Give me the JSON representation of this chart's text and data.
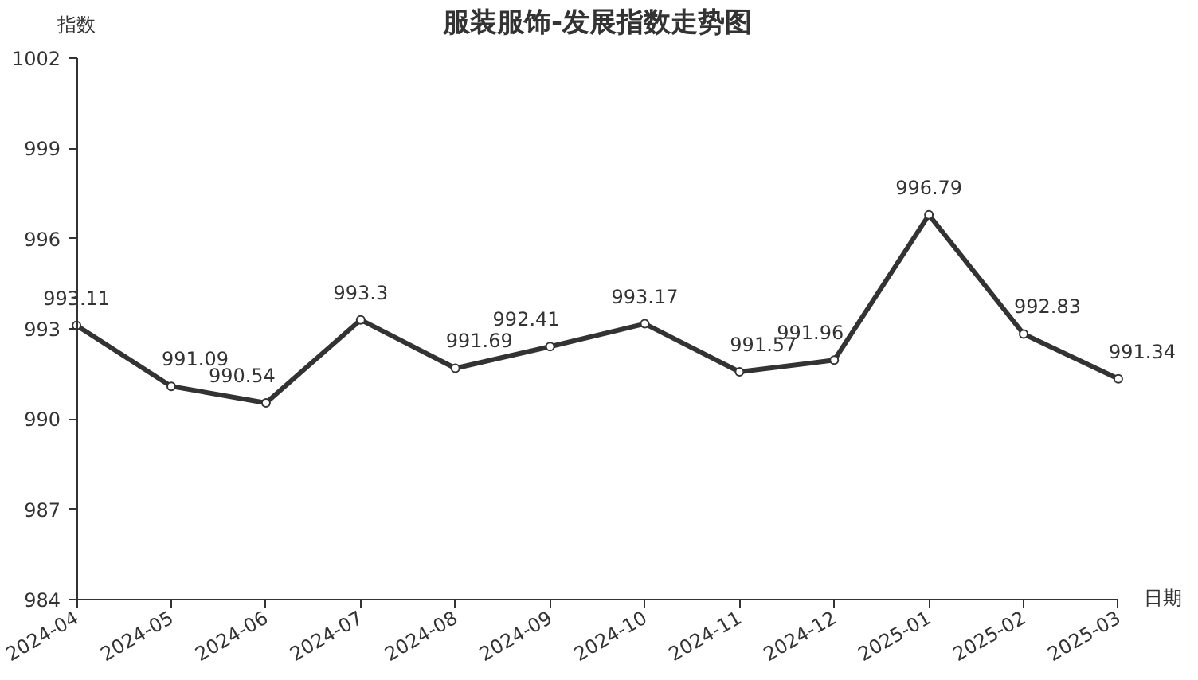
{
  "chart_data": {
    "type": "line",
    "title": "服装服饰-发展指数走势图",
    "xlabel": "日期",
    "ylabel": "指数",
    "categories": [
      "2024-04",
      "2024-05",
      "2024-06",
      "2024-07",
      "2024-08",
      "2024-09",
      "2024-10",
      "2024-11",
      "2024-12",
      "2025-01",
      "2025-02",
      "2025-03"
    ],
    "series": [
      {
        "color": "#333333",
        "values": [
          993.11,
          991.09,
          990.54,
          993.3,
          991.69,
          992.41,
          993.17,
          991.57,
          991.96,
          996.79,
          992.83,
          991.34
        ]
      }
    ],
    "ylim": [
      984,
      1002
    ],
    "yticks": [
      984,
      987,
      990,
      993,
      996,
      999,
      1002
    ],
    "grid": false,
    "marker": "circle",
    "line_style": "solid",
    "data_labels": true
  }
}
